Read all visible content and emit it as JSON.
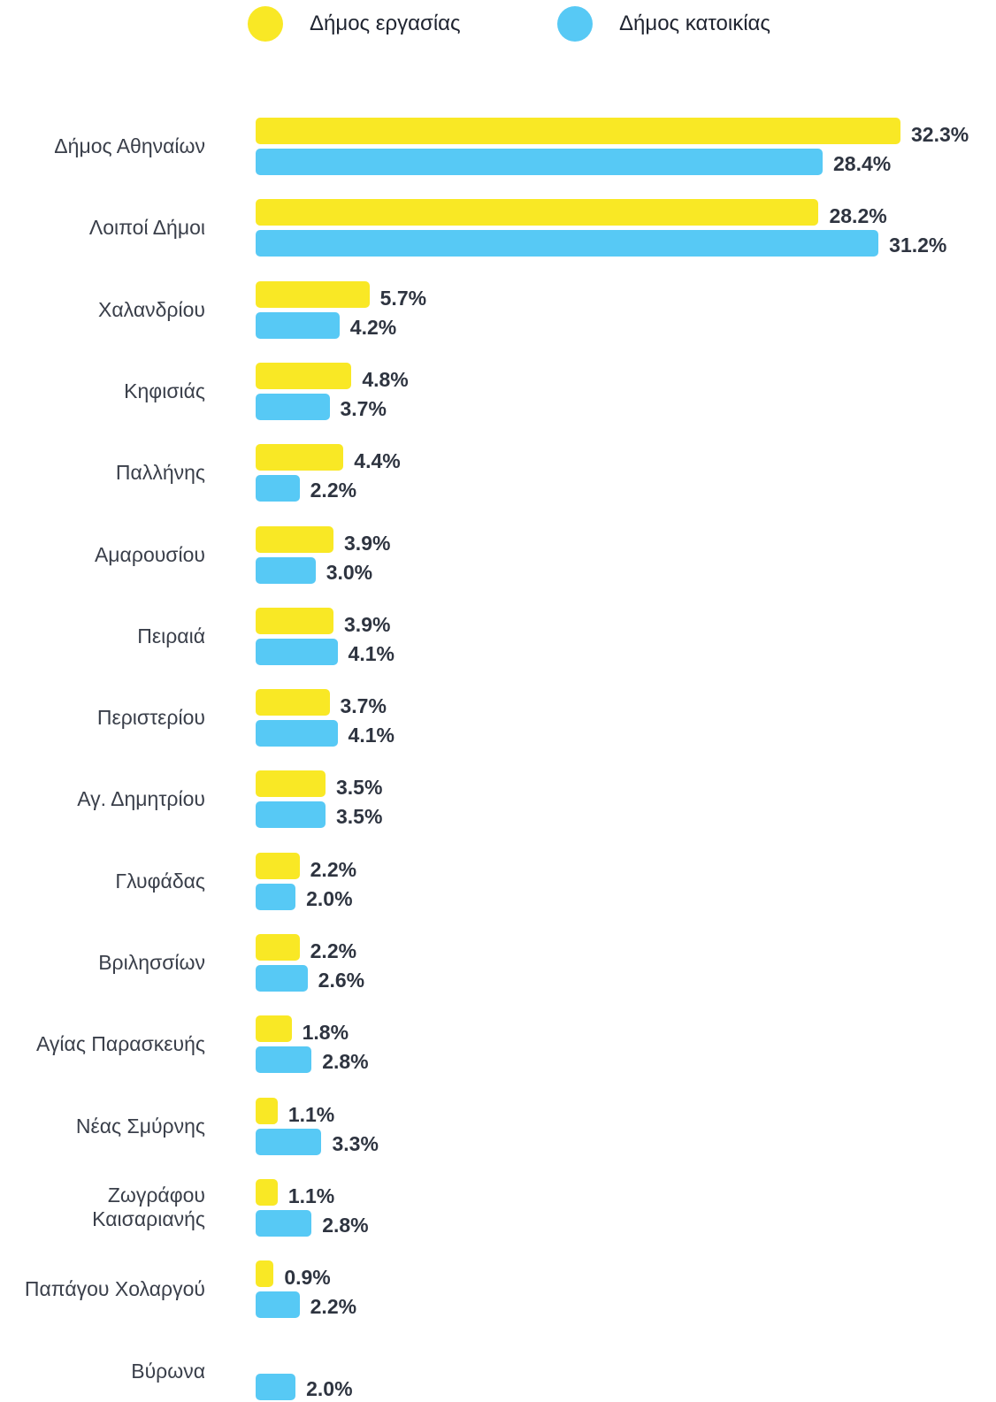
{
  "chart_data": {
    "type": "bar",
    "orientation": "horizontal",
    "categories": [
      "Δήμος Αθηναίων",
      "Λοιποί Δήμοι",
      "Χαλανδρίου",
      "Κηφισιάς",
      "Παλλήνης",
      "Αμαρουσίου",
      "Πειραιά",
      "Περιστερίου",
      "Αγ. Δημητρίου",
      "Γλυφάδας",
      "Βριλησσίων",
      "Αγίας Παρασκευής",
      "Νέας Σμύρνης",
      "Ζωγράφου Καισαριανής",
      "Παπάγου Χολαργού",
      "Βύρωνα"
    ],
    "series": [
      {
        "name": "Δήμος εργασίας",
        "color": "#f9e825",
        "values": [
          32.3,
          28.2,
          5.7,
          4.8,
          4.4,
          3.9,
          3.9,
          3.7,
          3.5,
          2.2,
          2.2,
          1.8,
          1.1,
          1.1,
          0.9,
          null
        ],
        "value_labels": [
          "32.3%",
          "28.2%",
          "5.7%",
          "4.8%",
          "4.4%",
          "3.9%",
          "3.9%",
          "3.7%",
          "3.5%",
          "2.2%",
          "2.2%",
          "1.8%",
          "1.1%",
          "1.1%",
          "0.9%",
          null
        ]
      },
      {
        "name": "Δήμος κατοικίας",
        "color": "#57c9f5",
        "values": [
          28.4,
          31.2,
          4.2,
          3.7,
          2.2,
          3.0,
          4.1,
          4.1,
          3.5,
          2.0,
          2.6,
          2.8,
          3.3,
          2.8,
          2.2,
          2.0
        ],
        "value_labels": [
          "28.4%",
          "31.2%",
          "4.2%",
          "3.7%",
          "2.2%",
          "3.0%",
          "4.1%",
          "4.1%",
          "3.5%",
          "2.0%",
          "2.6%",
          "2.8%",
          "3.3%",
          "2.8%",
          "2.2%",
          "2.0%"
        ]
      }
    ],
    "legend": "top"
  }
}
